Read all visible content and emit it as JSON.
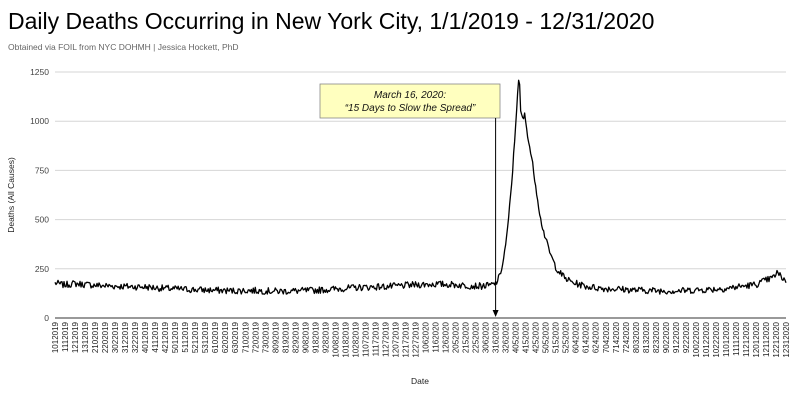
{
  "header": {
    "title": "Daily Deaths Occurring in New York City, 1/1/2019 - 12/31/2020",
    "subtitle": "Obtained via FOIL from NYC DOHMH | Jessica Hockett, PhD"
  },
  "chart_data": {
    "type": "line",
    "title": "Daily Deaths Occurring in New York City, 1/1/2019 - 12/31/2020",
    "subtitle": "Obtained via FOIL from NYC DOHMH | Jessica Hockett, PhD",
    "xlabel": "Date",
    "ylabel": "Deaths (All Causes)",
    "ylim": [
      0,
      1250
    ],
    "yticks": [
      0,
      250,
      500,
      750,
      1000,
      1250
    ],
    "grid": "horizontal",
    "line_color": "#000000",
    "x_range": [
      "2019-01-01",
      "2020-12-31"
    ],
    "x_tick_labels": [
      "1012019",
      "1112019",
      "1212019",
      "1312019",
      "2102019",
      "2202019",
      "3022019",
      "3122019",
      "3222019",
      "4012019",
      "4112019",
      "4212019",
      "5012019",
      "5112019",
      "5212019",
      "5312019",
      "6102019",
      "6202019",
      "6302019",
      "7102019",
      "7202019",
      "7302019",
      "8092019",
      "8192019",
      "8292019",
      "9082019",
      "9182019",
      "9282019",
      "10082019",
      "10182019",
      "10282019",
      "11072019",
      "11172019",
      "11272019",
      "12072019",
      "12172019",
      "12272019",
      "1062020",
      "1162020",
      "1262020",
      "2052020",
      "2152020",
      "2252020",
      "3062020",
      "3162020",
      "3262020",
      "4052020",
      "4152020",
      "4252020",
      "5052020",
      "5152020",
      "5252020",
      "6042020",
      "6142020",
      "6242020",
      "7042020",
      "7142020",
      "7242020",
      "8032020",
      "8132020",
      "8232020",
      "9022020",
      "9122020",
      "9222020",
      "10022020",
      "10122020",
      "10222020",
      "11012020",
      "11112020",
      "11212020",
      "12012020",
      "12112020",
      "12212020",
      "12312020"
    ],
    "series": [
      {
        "points": [
          [
            "2019-01-01",
            178
          ],
          [
            "2019-01-10",
            168
          ],
          [
            "2019-01-20",
            175
          ],
          [
            "2019-02-01",
            170
          ],
          [
            "2019-02-15",
            165
          ],
          [
            "2019-03-01",
            162
          ],
          [
            "2019-03-15",
            160
          ],
          [
            "2019-04-01",
            158
          ],
          [
            "2019-04-15",
            152
          ],
          [
            "2019-05-01",
            148
          ],
          [
            "2019-05-15",
            145
          ],
          [
            "2019-06-01",
            142
          ],
          [
            "2019-06-15",
            140
          ],
          [
            "2019-07-01",
            138
          ],
          [
            "2019-07-15",
            140
          ],
          [
            "2019-08-01",
            137
          ],
          [
            "2019-08-15",
            136
          ],
          [
            "2019-09-01",
            138
          ],
          [
            "2019-09-15",
            140
          ],
          [
            "2019-10-01",
            145
          ],
          [
            "2019-10-15",
            150
          ],
          [
            "2019-11-01",
            155
          ],
          [
            "2019-11-15",
            158
          ],
          [
            "2019-12-01",
            160
          ],
          [
            "2019-12-15",
            165
          ],
          [
            "2020-01-01",
            170
          ],
          [
            "2020-01-15",
            172
          ],
          [
            "2020-02-01",
            170
          ],
          [
            "2020-02-15",
            165
          ],
          [
            "2020-03-01",
            162
          ],
          [
            "2020-03-10",
            165
          ],
          [
            "2020-03-16",
            175
          ],
          [
            "2020-03-20",
            210
          ],
          [
            "2020-03-24",
            300
          ],
          [
            "2020-03-28",
            450
          ],
          [
            "2020-04-01",
            680
          ],
          [
            "2020-04-04",
            900
          ],
          [
            "2020-04-07",
            1150
          ],
          [
            "2020-04-08",
            1200
          ],
          [
            "2020-04-09",
            1175
          ],
          [
            "2020-04-10",
            1050
          ],
          [
            "2020-04-12",
            1010
          ],
          [
            "2020-04-14",
            1030
          ],
          [
            "2020-04-18",
            900
          ],
          [
            "2020-04-22",
            780
          ],
          [
            "2020-04-26",
            640
          ],
          [
            "2020-04-30",
            500
          ],
          [
            "2020-05-05",
            400
          ],
          [
            "2020-05-10",
            320
          ],
          [
            "2020-05-15",
            260
          ],
          [
            "2020-05-20",
            225
          ],
          [
            "2020-05-25",
            200
          ],
          [
            "2020-06-01",
            180
          ],
          [
            "2020-06-15",
            160
          ],
          [
            "2020-07-01",
            150
          ],
          [
            "2020-07-15",
            148
          ],
          [
            "2020-08-01",
            142
          ],
          [
            "2020-08-15",
            140
          ],
          [
            "2020-09-01",
            138
          ],
          [
            "2020-09-15",
            138
          ],
          [
            "2020-10-01",
            142
          ],
          [
            "2020-10-15",
            145
          ],
          [
            "2020-11-01",
            150
          ],
          [
            "2020-11-15",
            160
          ],
          [
            "2020-12-01",
            170
          ],
          [
            "2020-12-10",
            190
          ],
          [
            "2020-12-18",
            205
          ],
          [
            "2020-12-22",
            230
          ],
          [
            "2020-12-25",
            215
          ],
          [
            "2020-12-31",
            190
          ]
        ]
      }
    ],
    "annotation": {
      "date": "2020-03-16",
      "line1": "March 16, 2020:",
      "line2": "“15 Days to Slow the Spread”"
    }
  }
}
